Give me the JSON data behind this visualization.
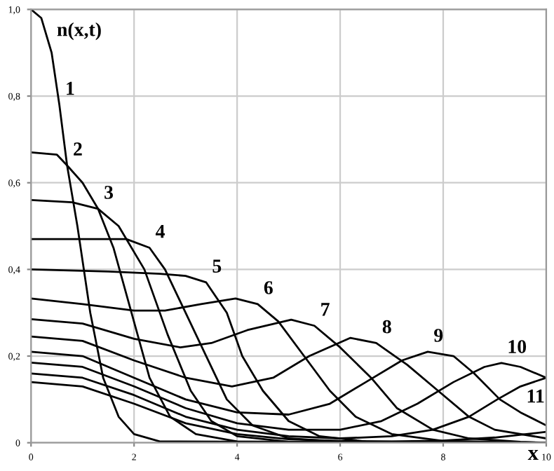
{
  "chart_data": {
    "type": "line",
    "xlabel": "x",
    "ylabel": "n(x,t)",
    "xlim": [
      0,
      10
    ],
    "ylim": [
      0,
      1.0
    ],
    "xticks": [
      0,
      2,
      4,
      6,
      8,
      10
    ],
    "yticks": [
      0,
      {
        "value": 0.2,
        "label": "0,2"
      },
      {
        "value": 0.4,
        "label": "0,4"
      },
      {
        "value": 0.6,
        "label": "0,6"
      },
      {
        "value": 0.8,
        "label": "0,8"
      },
      {
        "value": 1.0,
        "label": "1,0"
      }
    ],
    "grid": true,
    "marker": "none",
    "line_style": "solid",
    "series": [
      {
        "color": "#000000",
        "x": [
          0,
          0.2,
          0.4,
          0.55,
          0.7,
          0.9,
          1.15,
          1.4,
          1.7,
          2.0,
          2.5,
          10
        ],
        "values": [
          1.0,
          0.98,
          0.9,
          0.78,
          0.64,
          0.5,
          0.3,
          0.15,
          0.06,
          0.02,
          0.003,
          0
        ]
      },
      {
        "color": "#000000",
        "x": [
          0,
          0.5,
          0.7,
          1.0,
          1.3,
          1.6,
          1.95,
          2.3,
          2.7,
          3.2,
          4,
          10
        ],
        "values": [
          0.67,
          0.665,
          0.64,
          0.6,
          0.54,
          0.45,
          0.3,
          0.15,
          0.06,
          0.02,
          0.003,
          0
        ]
      },
      {
        "color": "#000000",
        "x": [
          0,
          0.8,
          1.3,
          1.7,
          2.2,
          2.65,
          3.1,
          3.5,
          4,
          5,
          10
        ],
        "values": [
          0.56,
          0.555,
          0.54,
          0.5,
          0.4,
          0.25,
          0.12,
          0.05,
          0.015,
          0.002,
          0
        ]
      },
      {
        "color": "#000000",
        "x": [
          0,
          1.85,
          2.3,
          2.6,
          3.0,
          3.4,
          3.8,
          4.3,
          5,
          6,
          10
        ],
        "values": [
          0.47,
          0.47,
          0.45,
          0.4,
          0.3,
          0.2,
          0.1,
          0.04,
          0.01,
          0.002,
          0
        ]
      },
      {
        "color": "#000000",
        "x": [
          0,
          1.5,
          2.5,
          3.0,
          3.4,
          3.8,
          4.1,
          4.5,
          5,
          5.6,
          6.5,
          10
        ],
        "values": [
          0.4,
          0.395,
          0.39,
          0.385,
          0.37,
          0.3,
          0.2,
          0.12,
          0.05,
          0.015,
          0.003,
          0
        ]
      },
      {
        "color": "#000000",
        "x": [
          0,
          1,
          2,
          2.6,
          3.3,
          3.97,
          4.4,
          4.8,
          5.3,
          5.8,
          6.3,
          7,
          8,
          10
        ],
        "values": [
          0.333,
          0.32,
          0.305,
          0.305,
          0.32,
          0.333,
          0.32,
          0.28,
          0.2,
          0.12,
          0.06,
          0.02,
          0.004,
          0
        ]
      },
      {
        "color": "#000000",
        "x": [
          0,
          1,
          2,
          2.9,
          3.5,
          4.2,
          5.05,
          5.5,
          6.0,
          6.6,
          7.1,
          7.8,
          8.5,
          9.5,
          10
        ],
        "values": [
          0.285,
          0.275,
          0.24,
          0.22,
          0.23,
          0.26,
          0.284,
          0.27,
          0.22,
          0.15,
          0.08,
          0.03,
          0.01,
          0.002,
          0
        ]
      },
      {
        "color": "#000000",
        "x": [
          0,
          1,
          2,
          3,
          3.9,
          4.7,
          5.4,
          6.2,
          6.7,
          7.3,
          7.9,
          8.5,
          9,
          10
        ],
        "values": [
          0.245,
          0.235,
          0.19,
          0.15,
          0.13,
          0.15,
          0.2,
          0.242,
          0.23,
          0.18,
          0.12,
          0.06,
          0.03,
          0.01
        ]
      },
      {
        "color": "#000000",
        "x": [
          0,
          1,
          2,
          3,
          4,
          5,
          5.8,
          6.5,
          7.2,
          7.7,
          8.2,
          8.6,
          9.1,
          9.5,
          10
        ],
        "values": [
          0.21,
          0.2,
          0.15,
          0.1,
          0.07,
          0.065,
          0.09,
          0.14,
          0.19,
          0.21,
          0.2,
          0.16,
          0.1,
          0.07,
          0.04
        ]
      },
      {
        "color": "#000000",
        "x": [
          0,
          1,
          2,
          3,
          4,
          5,
          6,
          6.8,
          7.5,
          8.2,
          8.8,
          9.13,
          9.5,
          10
        ],
        "values": [
          0.185,
          0.175,
          0.13,
          0.08,
          0.045,
          0.03,
          0.03,
          0.05,
          0.09,
          0.14,
          0.175,
          0.184,
          0.175,
          0.15
        ]
      },
      {
        "color": "#000000",
        "x": [
          0,
          1,
          2,
          3,
          4,
          5,
          6,
          7,
          7.8,
          8.5,
          9.05,
          9.5,
          10
        ],
        "values": [
          0.16,
          0.15,
          0.11,
          0.06,
          0.03,
          0.015,
          0.01,
          0.015,
          0.03,
          0.06,
          0.1,
          0.13,
          0.15
        ]
      },
      {
        "color": "#000000",
        "x": [
          0,
          1,
          2,
          3,
          4,
          5,
          6,
          7,
          8,
          9,
          10
        ],
        "values": [
          0.14,
          0.13,
          0.09,
          0.045,
          0.02,
          0.008,
          0.004,
          0.003,
          0.005,
          0.012,
          0.025
        ]
      }
    ],
    "annotations": [
      {
        "text": "1",
        "x": 0.55,
        "y": 0.78
      },
      {
        "text": "2",
        "x": 0.7,
        "y": 0.64
      },
      {
        "text": "3",
        "x": 1.3,
        "y": 0.54
      },
      {
        "text": "4",
        "x": 2.3,
        "y": 0.45
      },
      {
        "text": "5",
        "x": 3.4,
        "y": 0.37
      },
      {
        "text": "6",
        "x": 4.4,
        "y": 0.32
      },
      {
        "text": "7",
        "x": 5.5,
        "y": 0.27
      },
      {
        "text": "8",
        "x": 6.7,
        "y": 0.23
      },
      {
        "text": "9",
        "x": 7.7,
        "y": 0.21
      },
      {
        "text": "10",
        "x": 9.13,
        "y": 0.184
      },
      {
        "text": "11",
        "x": 9.5,
        "y": 0.07
      }
    ]
  }
}
